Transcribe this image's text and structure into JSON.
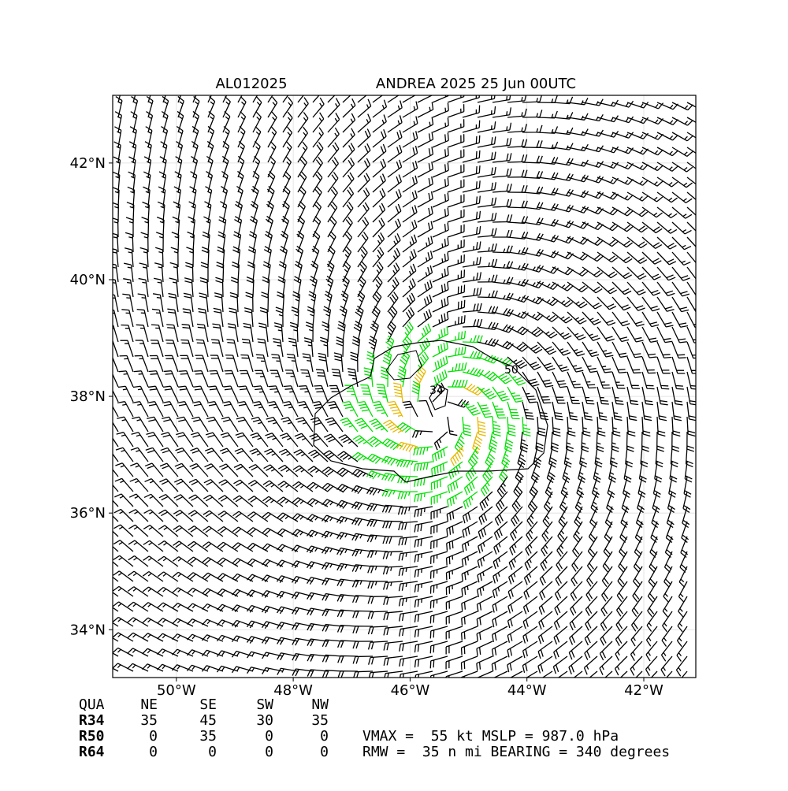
{
  "header": {
    "storm_id": "AL012025",
    "title": "ANDREA 2025 25 Jun 00UTC"
  },
  "map": {
    "xlim": [
      -51.09,
      -41.11
    ],
    "ylim": [
      33.18,
      43.16
    ],
    "xticks": [
      {
        "value": -50,
        "label": "50°W"
      },
      {
        "value": -48,
        "label": "48°W"
      },
      {
        "value": -46,
        "label": "46°W"
      },
      {
        "value": -44,
        "label": "44°W"
      },
      {
        "value": -42,
        "label": "42°W"
      }
    ],
    "yticks": [
      {
        "value": 34,
        "label": "34°N"
      },
      {
        "value": 36,
        "label": "36°N"
      },
      {
        "value": 38,
        "label": "38°N"
      },
      {
        "value": 40,
        "label": "40°N"
      },
      {
        "value": 42,
        "label": "42°N"
      }
    ],
    "contour_labels": [
      "34",
      "50"
    ]
  },
  "table": {
    "header": [
      "QUA",
      "NE",
      "SE",
      "SW",
      "NW"
    ],
    "rows": [
      [
        "R34",
        "35",
        "45",
        "30",
        "35"
      ],
      [
        "R50",
        "0",
        "35",
        "0",
        "0"
      ],
      [
        "R64",
        "0",
        "0",
        "0",
        "0"
      ]
    ]
  },
  "info": [
    "VMAX =  55 kt MSLP = 987.0 hPa",
    "RMW =  35 n mi BEARING = 340 degrees"
  ]
}
